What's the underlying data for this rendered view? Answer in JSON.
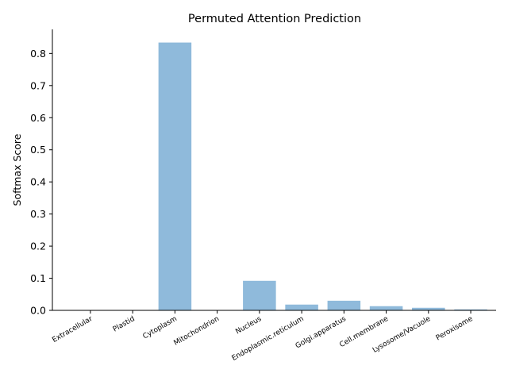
{
  "chart_data": {
    "type": "bar",
    "title": "Permuted Attention Prediction",
    "xlabel": "",
    "ylabel": "Softmax Score",
    "categories": [
      "Extracellular",
      "Plastid",
      "Cytoplasm",
      "Mitochondrion",
      "Nucleus",
      "Endoplasmic.reticulum",
      "Golgi.apparatus",
      "Cell.membrane",
      "Lysosome/Vacuole",
      "Peroxisome"
    ],
    "values": [
      0.0003,
      0.0002,
      0.834,
      0.0005,
      0.092,
      0.018,
      0.03,
      0.013,
      0.008,
      0.003
    ],
    "ylim": [
      0,
      0.875
    ],
    "yticks": [
      "0.0",
      "0.1",
      "0.2",
      "0.3",
      "0.4",
      "0.5",
      "0.6",
      "0.7",
      "0.8"
    ],
    "bar_color": "#8fbadb",
    "grid": false,
    "legend": "none"
  }
}
